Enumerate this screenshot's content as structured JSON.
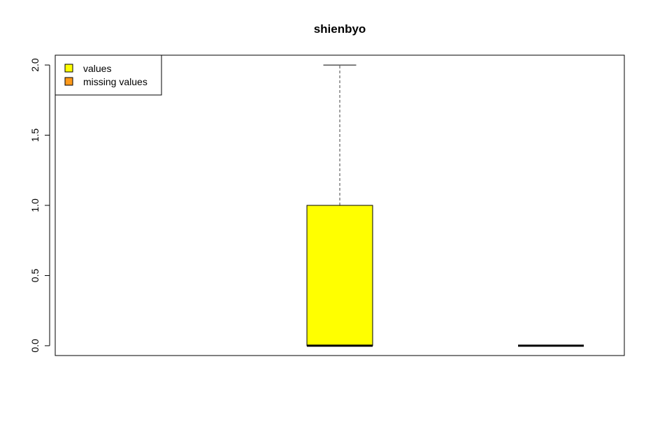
{
  "chart_data": {
    "type": "boxplot",
    "title": "shienbyo",
    "xlabel": "",
    "ylabel": "",
    "ylim": [
      -0.07,
      2.07
    ],
    "yticks": [
      0.0,
      0.5,
      1.0,
      1.5,
      2.0
    ],
    "ytick_labels": [
      "0.0",
      "0.5",
      "1.0",
      "1.5",
      "2.0"
    ],
    "grid": false,
    "legend": {
      "position": "top-left",
      "entries": [
        {
          "label": "values",
          "color": "#ffff00"
        },
        {
          "label": "missing values",
          "color": "#ff9a1a"
        }
      ]
    },
    "boxes": [
      {
        "series": "values",
        "color": "#ffff00",
        "min": 0,
        "q1": 0,
        "median": 0,
        "q3": 1,
        "max": 2
      },
      {
        "series": "missing values",
        "color": "#ff9a1a",
        "min": 0,
        "q1": 0,
        "median": 0,
        "q3": 0,
        "max": 0
      }
    ]
  }
}
